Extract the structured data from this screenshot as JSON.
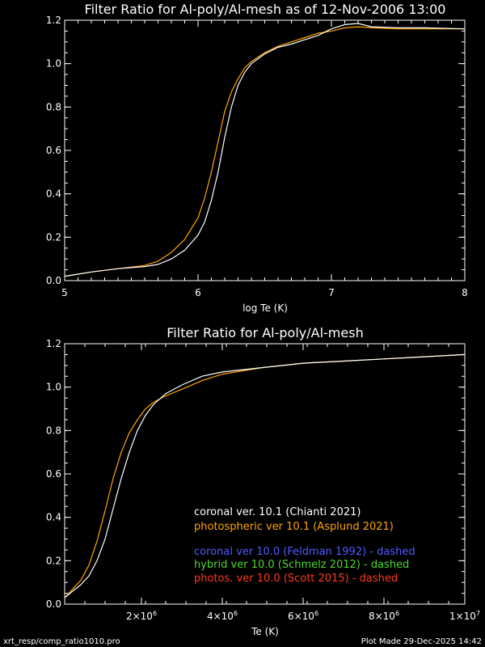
{
  "colors": {
    "background": "#000000",
    "axes": "#ffffff",
    "coronal_101": "#ffffff",
    "photospheric_101": "#ffa500",
    "coronal_100": "#4f5bff",
    "hybrid_100": "#4cd92f",
    "photos_100": "#ff3a1a"
  },
  "footer": {
    "left": "xrt_resp/comp_ratio1010.pro",
    "right": "Plot Made 29-Dec-2025 14:42"
  },
  "chart_data": [
    {
      "type": "line",
      "title": "Filter Ratio for Al-poly/Al-mesh as of 12-Nov-2006 13:00",
      "xlabel": "log Te (K)",
      "ylabel": "",
      "xlim": [
        5,
        8
      ],
      "ylim": [
        0,
        1.2
      ],
      "xticks": [
        5,
        6,
        7,
        8
      ],
      "xtick_labels": [
        "5",
        "6",
        "7",
        "8"
      ],
      "yticks": [
        0,
        0.2,
        0.4,
        0.6,
        0.8,
        1.0,
        1.2
      ],
      "ytick_labels": [
        "0.0",
        "0.2",
        "0.4",
        "0.6",
        "0.8",
        "1.0",
        "1.2"
      ],
      "series": [
        {
          "color_key": "photospheric_101",
          "x": [
            5.0,
            5.2,
            5.4,
            5.6,
            5.7,
            5.8,
            5.9,
            6.0,
            6.05,
            6.1,
            6.15,
            6.2,
            6.25,
            6.3,
            6.35,
            6.4,
            6.5,
            6.6,
            6.7,
            6.8,
            6.9,
            7.0,
            7.1,
            7.2,
            7.3,
            7.5,
            7.7,
            8.0
          ],
          "y": [
            0.02,
            0.04,
            0.055,
            0.07,
            0.09,
            0.13,
            0.19,
            0.29,
            0.38,
            0.5,
            0.64,
            0.78,
            0.87,
            0.93,
            0.98,
            1.01,
            1.05,
            1.08,
            1.1,
            1.12,
            1.14,
            1.15,
            1.165,
            1.17,
            1.165,
            1.16,
            1.16,
            1.16
          ]
        },
        {
          "color_key": "coronal_101",
          "x": [
            5.0,
            5.2,
            5.4,
            5.6,
            5.7,
            5.8,
            5.9,
            6.0,
            6.05,
            6.1,
            6.15,
            6.2,
            6.25,
            6.3,
            6.35,
            6.4,
            6.5,
            6.6,
            6.7,
            6.8,
            6.9,
            7.0,
            7.1,
            7.2,
            7.3,
            7.5,
            7.7,
            8.0
          ],
          "y": [
            0.02,
            0.04,
            0.055,
            0.065,
            0.075,
            0.1,
            0.14,
            0.21,
            0.27,
            0.37,
            0.5,
            0.66,
            0.8,
            0.9,
            0.96,
            1.0,
            1.045,
            1.075,
            1.09,
            1.11,
            1.13,
            1.16,
            1.18,
            1.185,
            1.17,
            1.165,
            1.165,
            1.16
          ]
        }
      ]
    },
    {
      "type": "line",
      "title": "Filter Ratio for Al-poly/Al-mesh",
      "xlabel": "Te (K)",
      "ylabel": "",
      "xlim": [
        100000,
        10000000
      ],
      "ylim": [
        0,
        1.2
      ],
      "xticks": [
        2000000,
        4000000,
        6000000,
        8000000,
        10000000
      ],
      "xtick_labels": [
        {
          "base": "2×10",
          "exp": "6"
        },
        {
          "base": "4×10",
          "exp": "6"
        },
        {
          "base": "6×10",
          "exp": "6"
        },
        {
          "base": "8×10",
          "exp": "6"
        },
        {
          "base": "1×10",
          "exp": "7"
        }
      ],
      "yticks": [
        0,
        0.2,
        0.4,
        0.6,
        0.8,
        1.0,
        1.2
      ],
      "ytick_labels": [
        "0.0",
        "0.2",
        "0.4",
        "0.6",
        "0.8",
        "1.0",
        "1.2"
      ],
      "legend": [
        {
          "text": "coronal ver. 10.1 (Chianti 2021)",
          "color_key": "coronal_101"
        },
        {
          "text": "photospheric ver 10.1 (Asplund 2021)",
          "color_key": "photospheric_101"
        },
        {
          "text": "coronal ver 10.0 (Feldman 1992) - dashed",
          "color_key": "coronal_100"
        },
        {
          "text": "hybrid ver 10.0 (Schmelz 2012) - dashed",
          "color_key": "hybrid_100"
        },
        {
          "text": "photos. ver 10.0 (Scott 2015) - dashed",
          "color_key": "photos_100"
        }
      ],
      "series": [
        {
          "color_key": "photospheric_101",
          "x": [
            100000,
            300000,
            500000,
            700000,
            900000,
            1100000,
            1300000,
            1500000,
            1700000,
            1900000,
            2100000,
            2300000,
            2600000,
            3000000,
            3500000,
            4000000,
            5000000,
            6000000,
            7000000,
            8000000,
            9000000,
            10000000
          ],
          "y": [
            0.03,
            0.07,
            0.11,
            0.18,
            0.29,
            0.43,
            0.58,
            0.7,
            0.79,
            0.85,
            0.9,
            0.93,
            0.96,
            0.99,
            1.03,
            1.06,
            1.09,
            1.11,
            1.12,
            1.13,
            1.14,
            1.15
          ]
        },
        {
          "color_key": "coronal_101",
          "x": [
            100000,
            300000,
            500000,
            700000,
            900000,
            1100000,
            1300000,
            1500000,
            1700000,
            1900000,
            2100000,
            2300000,
            2600000,
            3000000,
            3500000,
            4000000,
            5000000,
            6000000,
            7000000,
            8000000,
            9000000,
            10000000
          ],
          "y": [
            0.03,
            0.06,
            0.09,
            0.13,
            0.2,
            0.3,
            0.44,
            0.58,
            0.7,
            0.8,
            0.87,
            0.92,
            0.97,
            1.01,
            1.05,
            1.07,
            1.09,
            1.11,
            1.12,
            1.13,
            1.14,
            1.15
          ]
        }
      ]
    }
  ]
}
